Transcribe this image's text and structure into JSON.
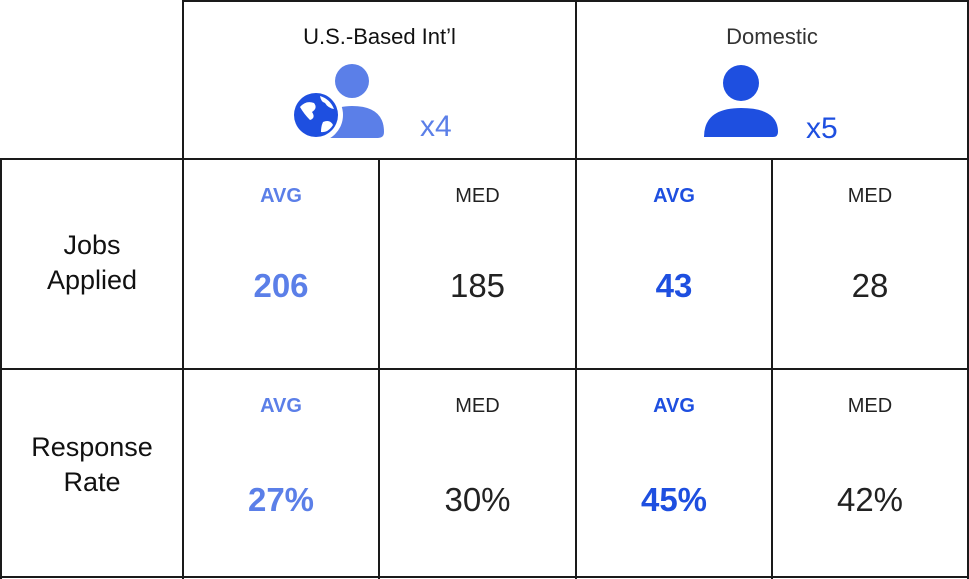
{
  "colors": {
    "intl_accent": "#5b7fe8",
    "domestic_accent": "#1e4fe0",
    "border": "#1a1a1a"
  },
  "groups": [
    {
      "title": "U.S.-Based Int’l",
      "icon": "globe-person-icon",
      "multiplier": "x4"
    },
    {
      "title": "Domestic",
      "icon": "person-icon",
      "multiplier": "x5"
    }
  ],
  "rows": [
    {
      "label_line1": "Jobs",
      "label_line2": "Applied",
      "intl": {
        "avg_label": "AVG",
        "avg_value": "206",
        "med_label": "MED",
        "med_value": "185"
      },
      "domestic": {
        "avg_label": "AVG",
        "avg_value": "43",
        "med_label": "MED",
        "med_value": "28"
      }
    },
    {
      "label_line1": "Response",
      "label_line2": "Rate",
      "intl": {
        "avg_label": "AVG",
        "avg_value": "27%",
        "med_label": "MED",
        "med_value": "30%"
      },
      "domestic": {
        "avg_label": "AVG",
        "avg_value": "45%",
        "med_label": "MED",
        "med_value": "42%"
      }
    }
  ]
}
